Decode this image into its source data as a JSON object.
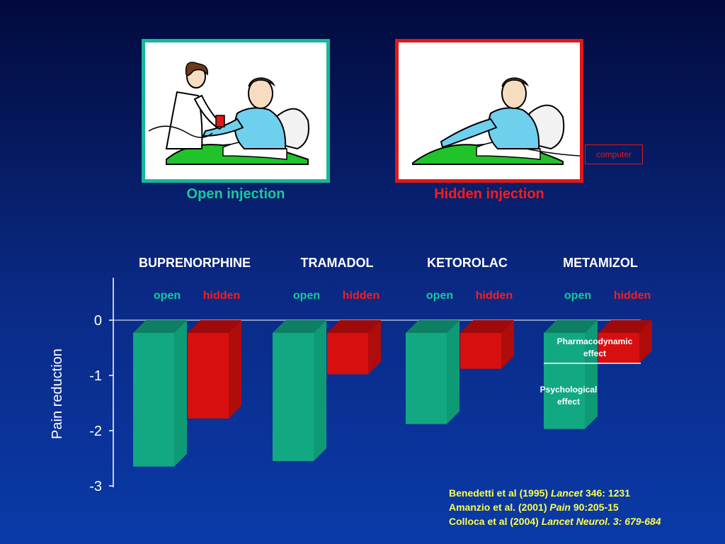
{
  "panels": {
    "open_caption": "Open injection",
    "hidden_caption": "Hidden injection",
    "computer_label": "computer"
  },
  "chart_data": {
    "type": "bar",
    "ylabel": "Pain reduction",
    "ylim": [
      -3,
      0
    ],
    "yticks": [
      "0",
      "-1",
      "-2",
      "-3"
    ],
    "groups": [
      "BUPRENORPHINE",
      "TRAMADOL",
      "KETOROLAC",
      "METAMIZOL"
    ],
    "series": [
      {
        "name": "open",
        "color": "#12a882",
        "values": [
          -2.65,
          -2.55,
          -1.88,
          -1.97
        ]
      },
      {
        "name": "hidden",
        "color": "#d80f0f",
        "values": [
          -1.78,
          -0.98,
          -0.88,
          -0.78
        ]
      }
    ],
    "annotations": [
      {
        "text": "Pharmacodynamic\neffect",
        "group": "METAMIZOL"
      },
      {
        "text": "Psychological\neffect",
        "group": "METAMIZOL"
      }
    ]
  },
  "references": [
    {
      "before": "Benedetti et al (1995) ",
      "italic": "Lancet",
      "after": " 346: 1231"
    },
    {
      "before": "Amanzio et al.  (2001) ",
      "italic": "Pain",
      "after": " 90:205-15"
    },
    {
      "before": "Colloca et al (2004) ",
      "italic": "Lancet Neurol. 3: 679-684",
      "after": ""
    }
  ]
}
